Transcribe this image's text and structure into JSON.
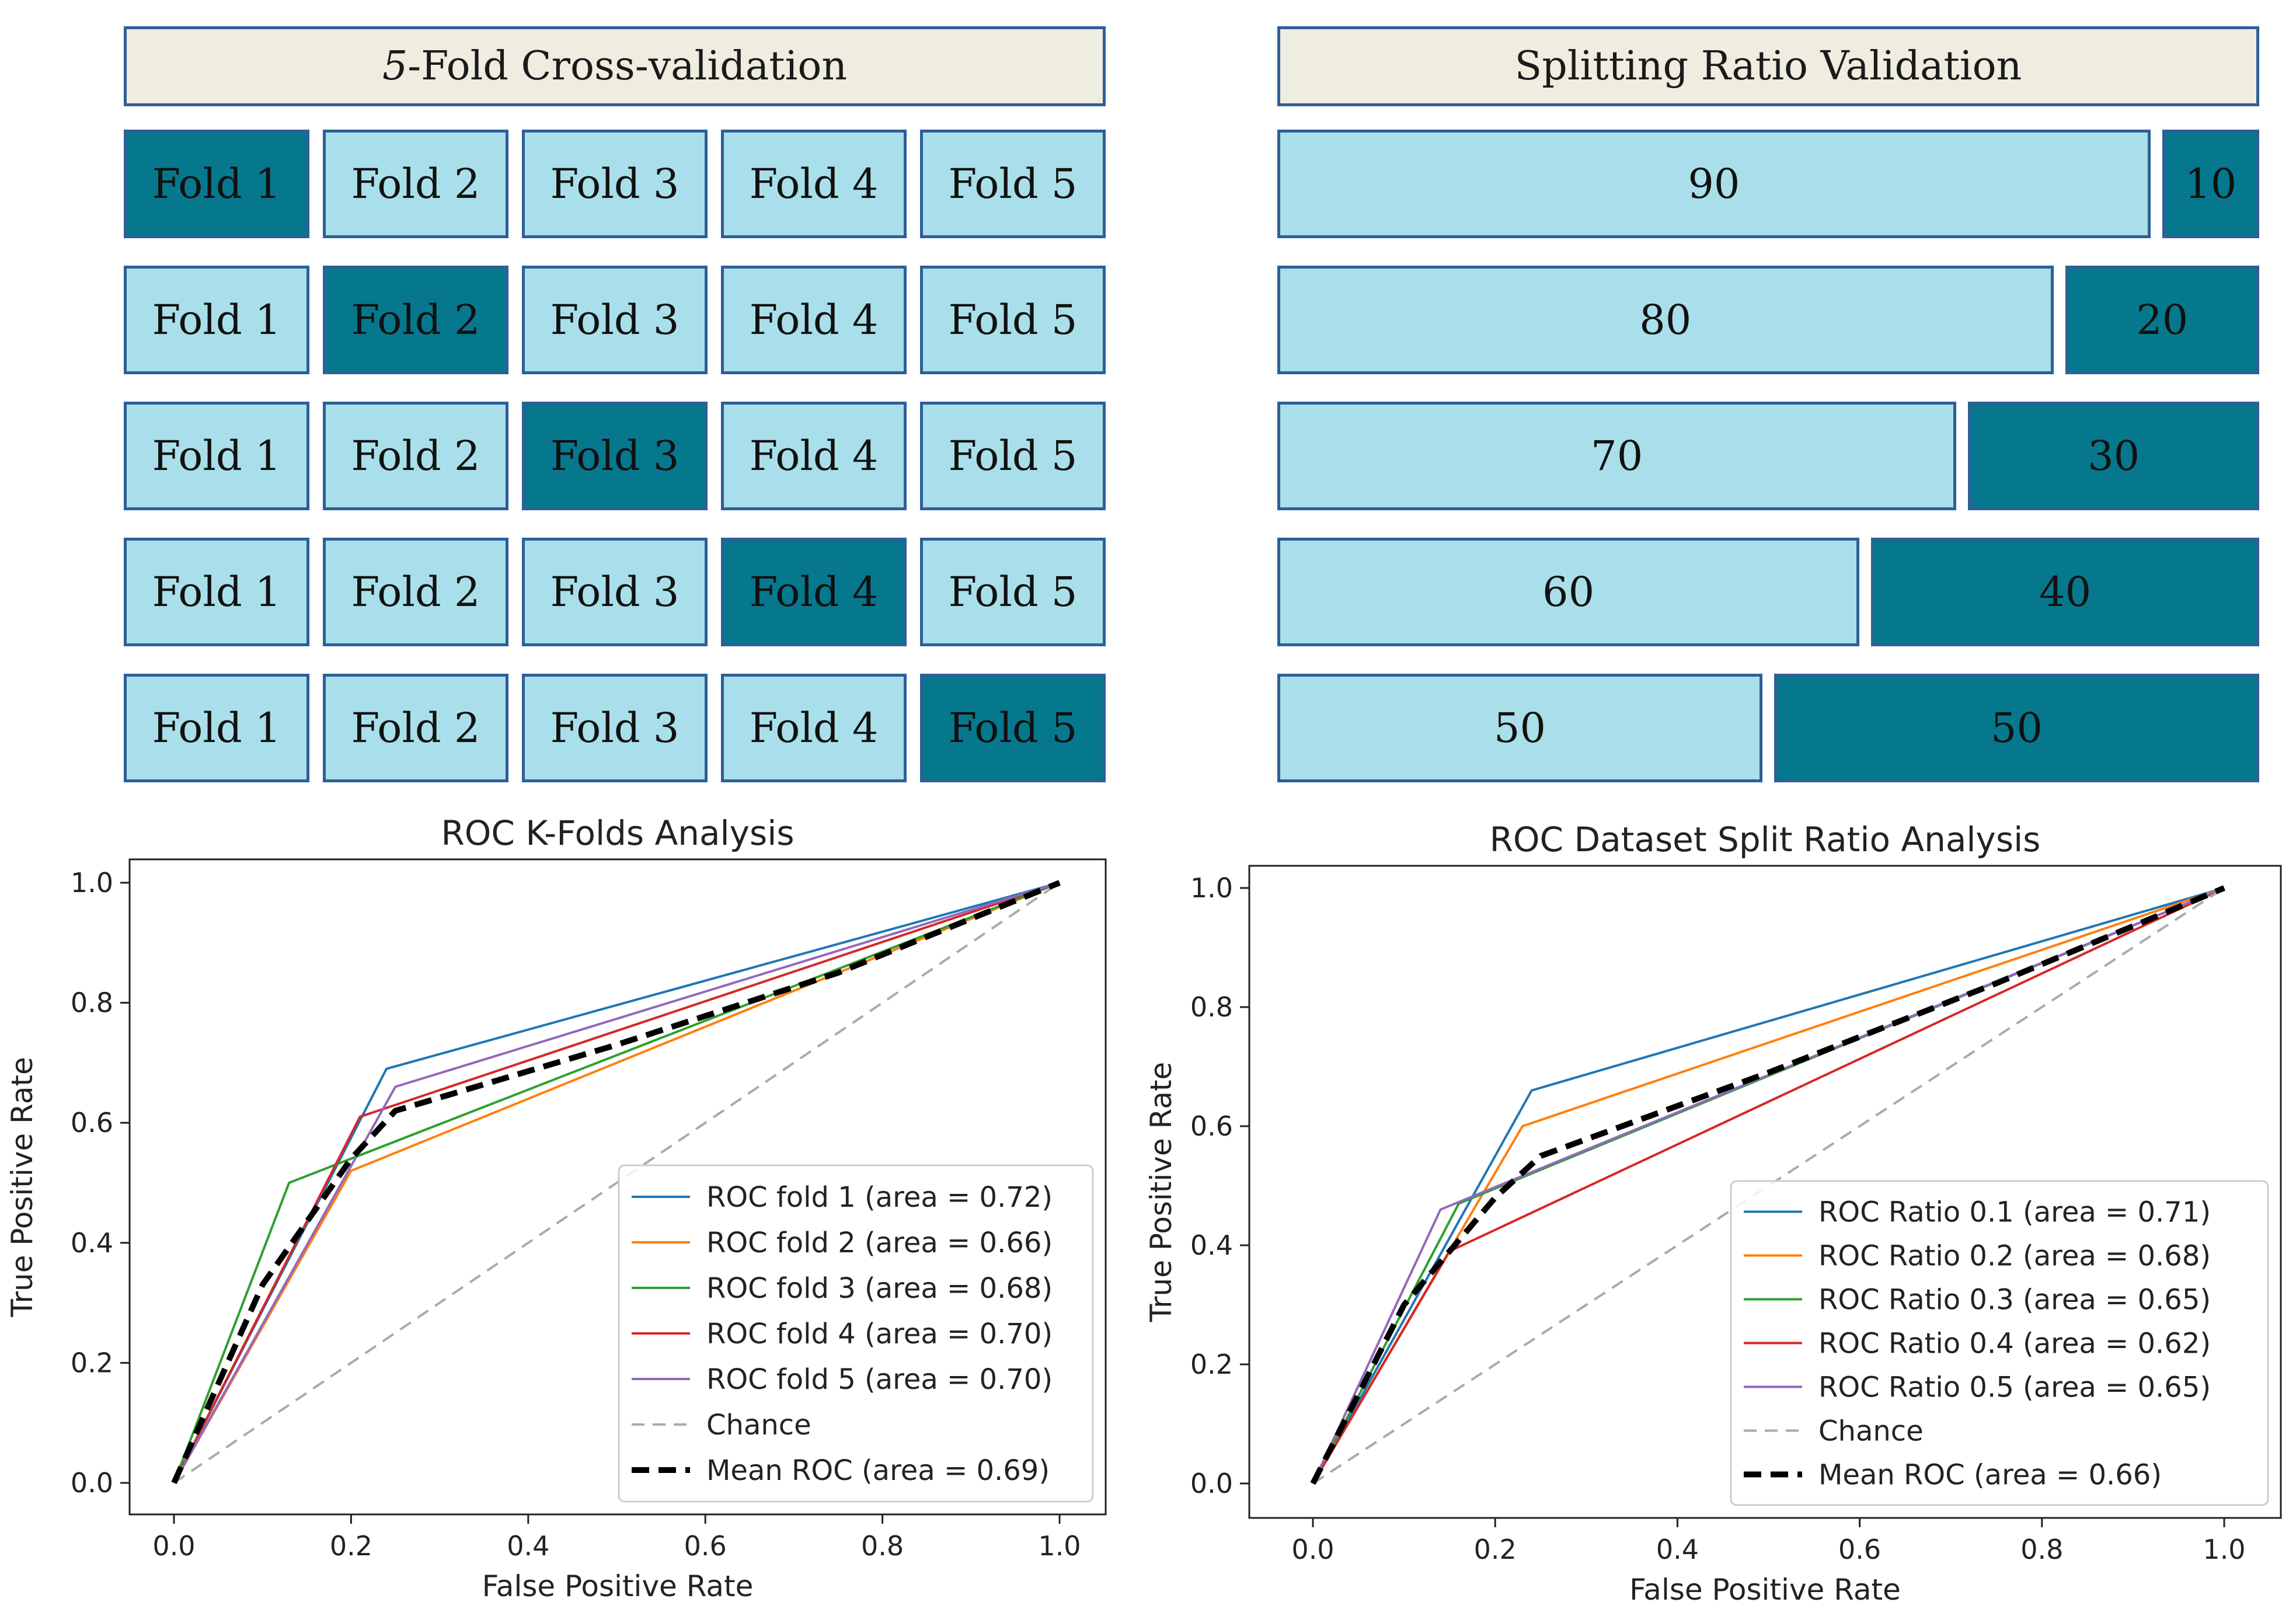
{
  "kfold_panel": {
    "title_num": "5",
    "title_rest": "-Fold Cross-validation",
    "fold_labels": [
      "Fold 1",
      "Fold 2",
      "Fold 3",
      "Fold 4",
      "Fold 5"
    ],
    "test_fold_by_row": [
      1,
      2,
      3,
      4,
      5
    ]
  },
  "split_panel": {
    "title": "Splitting Ratio Validation",
    "rows": [
      {
        "train": "90",
        "test": "10"
      },
      {
        "train": "80",
        "test": "20"
      },
      {
        "train": "70",
        "test": "30"
      },
      {
        "train": "60",
        "test": "40"
      },
      {
        "train": "50",
        "test": "50"
      }
    ]
  },
  "colors": {
    "train": "#a9dfea",
    "test": "#06788e",
    "border": "#2e5f96",
    "header_bg": "#efece0"
  },
  "chart_data": [
    {
      "type": "line",
      "title": "ROC K-Folds Analysis",
      "xlabel": "False Positive Rate",
      "ylabel": "True Positive Rate",
      "xlim": [
        0,
        1
      ],
      "ylim": [
        0,
        1
      ],
      "xticks": [
        "0.0",
        "0.2",
        "0.4",
        "0.6",
        "0.8",
        "1.0"
      ],
      "yticks": [
        "0.0",
        "0.2",
        "0.4",
        "0.6",
        "0.8",
        "1.0"
      ],
      "legend_position": "bottom-right",
      "series": [
        {
          "name": "ROC fold 1 (area = 0.72)",
          "color": "#1f77b4",
          "dash": "solid",
          "x": [
            0,
            0.24,
            1
          ],
          "y": [
            0,
            0.69,
            1
          ]
        },
        {
          "name": "ROC fold 2 (area = 0.66)",
          "color": "#ff7f0e",
          "dash": "solid",
          "x": [
            0,
            0.2,
            1
          ],
          "y": [
            0,
            0.52,
            1
          ]
        },
        {
          "name": "ROC fold 3 (area = 0.68)",
          "color": "#2ca02c",
          "dash": "solid",
          "x": [
            0,
            0.13,
            1
          ],
          "y": [
            0,
            0.5,
            1
          ]
        },
        {
          "name": "ROC fold 4 (area = 0.70)",
          "color": "#d62728",
          "dash": "solid",
          "x": [
            0,
            0.21,
            1
          ],
          "y": [
            0,
            0.61,
            1
          ]
        },
        {
          "name": "ROC fold 5 (area = 0.70)",
          "color": "#9467bd",
          "dash": "solid",
          "x": [
            0,
            0.25,
            1
          ],
          "y": [
            0,
            0.66,
            1
          ]
        },
        {
          "name": "Chance",
          "color": "#aaaaaa",
          "dash": "dashed",
          "x": [
            0,
            1
          ],
          "y": [
            0,
            1
          ]
        },
        {
          "name": "Mean ROC (area = 0.69)",
          "color": "#000000",
          "dash": "bold-dashed",
          "x": [
            0,
            0.1,
            0.2,
            0.25,
            0.5,
            0.75,
            1
          ],
          "y": [
            0,
            0.33,
            0.54,
            0.62,
            0.73,
            0.85,
            1
          ]
        }
      ]
    },
    {
      "type": "line",
      "title": "ROC Dataset Split Ratio Analysis",
      "xlabel": "False Positive Rate",
      "ylabel": "True Positive Rate",
      "xlim": [
        0,
        1
      ],
      "ylim": [
        0,
        1
      ],
      "xticks": [
        "0.0",
        "0.2",
        "0.4",
        "0.6",
        "0.8",
        "1.0"
      ],
      "yticks": [
        "0.0",
        "0.2",
        "0.4",
        "0.6",
        "0.8",
        "1.0"
      ],
      "legend_position": "bottom-right",
      "series": [
        {
          "name": "ROC Ratio 0.1 (area = 0.71)",
          "color": "#1f77b4",
          "dash": "solid",
          "x": [
            0,
            0.24,
            1
          ],
          "y": [
            0,
            0.66,
            1
          ]
        },
        {
          "name": "ROC Ratio 0.2 (area = 0.68)",
          "color": "#ff7f0e",
          "dash": "solid",
          "x": [
            0,
            0.23,
            1
          ],
          "y": [
            0,
            0.6,
            1
          ]
        },
        {
          "name": "ROC Ratio 0.3 (area = 0.65)",
          "color": "#2ca02c",
          "dash": "solid",
          "x": [
            0,
            0.16,
            1
          ],
          "y": [
            0,
            0.47,
            1
          ]
        },
        {
          "name": "ROC Ratio 0.4 (area = 0.62)",
          "color": "#d62728",
          "dash": "solid",
          "x": [
            0,
            0.15,
            1
          ],
          "y": [
            0,
            0.39,
            1
          ]
        },
        {
          "name": "ROC Ratio 0.5 (area = 0.65)",
          "color": "#9467bd",
          "dash": "solid",
          "x": [
            0,
            0.14,
            1
          ],
          "y": [
            0,
            0.46,
            1
          ]
        },
        {
          "name": "Chance",
          "color": "#aaaaaa",
          "dash": "dashed",
          "x": [
            0,
            1
          ],
          "y": [
            0,
            1
          ]
        },
        {
          "name": "Mean ROC (area = 0.66)",
          "color": "#000000",
          "dash": "bold-dashed",
          "x": [
            0,
            0.1,
            0.2,
            0.25,
            0.5,
            0.75,
            1
          ],
          "y": [
            0,
            0.3,
            0.48,
            0.55,
            0.69,
            0.84,
            1
          ]
        }
      ]
    }
  ]
}
